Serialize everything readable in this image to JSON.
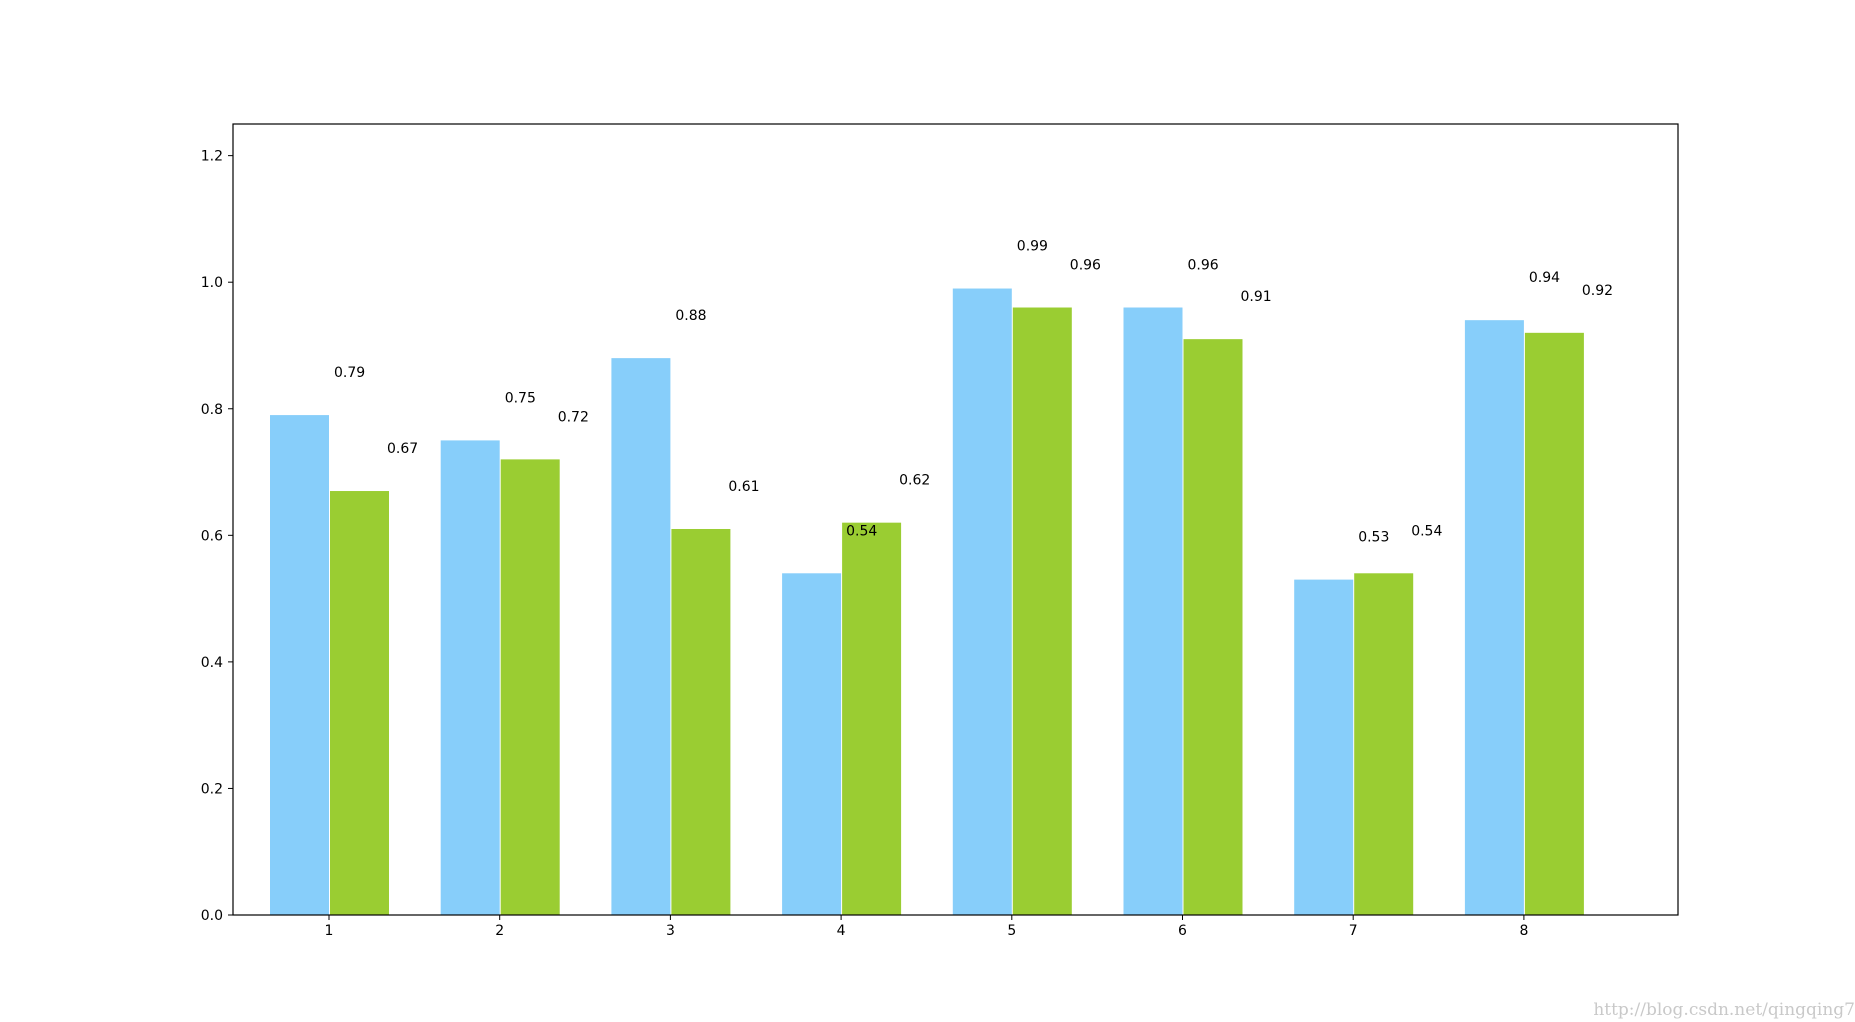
{
  "chart_data": {
    "type": "bar",
    "categories": [
      "1",
      "2",
      "3",
      "4",
      "5",
      "6",
      "7",
      "8"
    ],
    "series": [
      {
        "values": [
          0.79,
          0.75,
          0.88,
          0.54,
          0.99,
          0.96,
          0.53,
          0.94
        ],
        "color": "#87CEFA"
      },
      {
        "values": [
          0.67,
          0.72,
          0.61,
          0.62,
          0.96,
          0.91,
          0.54,
          0.92
        ],
        "color": "#9ACD32"
      }
    ],
    "ylim": [
      0,
      1.2
    ],
    "yticks": [
      "0.0",
      "0.2",
      "0.4",
      "0.6",
      "0.8",
      "1.0",
      "1.2"
    ],
    "grid": false,
    "title": "",
    "xlabel": "",
    "ylabel": ""
  },
  "watermark": "http://blog.csdn.net/qingqing7"
}
